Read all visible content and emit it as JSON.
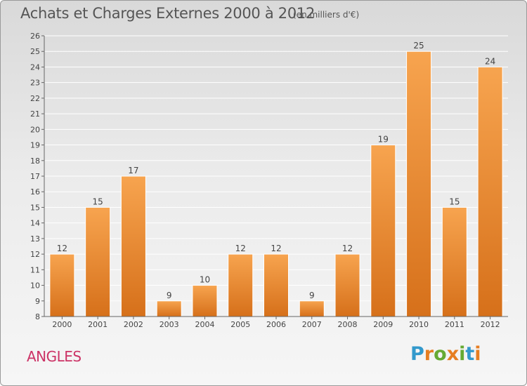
{
  "header": {
    "title": "Achats et Charges Externes 2000 à 2012",
    "subtitle": "(en milliers d'€)"
  },
  "commune": "ANGLES",
  "logo": {
    "text": "Proxiti",
    "letter_colors": [
      "#3399cc",
      "#e67e22",
      "#66aa33",
      "#e67e22",
      "#66aa33",
      "#3399cc",
      "#e67e22"
    ]
  },
  "colors": {
    "bar_light": "#f5a04d",
    "bar_dark": "#d86f18",
    "axis": "#666666",
    "grid": "#ffffff"
  },
  "chart_data": {
    "type": "bar",
    "title": "Achats et Charges Externes 2000 à 2012",
    "subtitle": "(en milliers d'€)",
    "categories": [
      "2000",
      "2001",
      "2002",
      "2003",
      "2004",
      "2005",
      "2006",
      "2007",
      "2008",
      "2009",
      "2010",
      "2011",
      "2012"
    ],
    "values": [
      12,
      15,
      17,
      9,
      10,
      12,
      12,
      9,
      12,
      19,
      25,
      15,
      24
    ],
    "ylim": [
      8,
      26
    ],
    "yticks": [
      8,
      9,
      10,
      11,
      12,
      13,
      14,
      15,
      16,
      17,
      18,
      19,
      20,
      21,
      22,
      23,
      24,
      25,
      26
    ],
    "grid": true,
    "data_labels": true
  }
}
